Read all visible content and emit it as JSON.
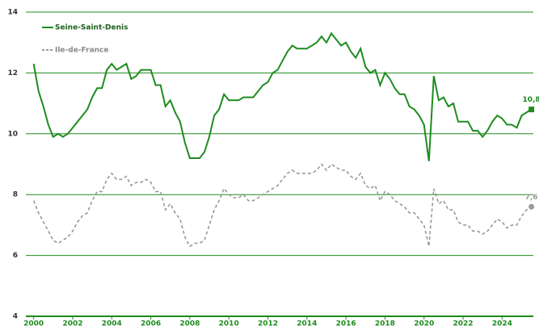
{
  "chart_data": {
    "type": "line",
    "x": [
      2000,
      2000.25,
      2000.5,
      2000.75,
      2001,
      2001.25,
      2001.5,
      2001.75,
      2002,
      2002.25,
      2002.5,
      2002.75,
      2003,
      2003.25,
      2003.5,
      2003.75,
      2004,
      2004.25,
      2004.5,
      2004.75,
      2005,
      2005.25,
      2005.5,
      2005.75,
      2006,
      2006.25,
      2006.5,
      2006.75,
      2007,
      2007.25,
      2007.5,
      2007.75,
      2008,
      2008.25,
      2008.5,
      2008.75,
      2009,
      2009.25,
      2009.5,
      2009.75,
      2010,
      2010.25,
      2010.5,
      2010.75,
      2011,
      2011.25,
      2011.5,
      2011.75,
      2012,
      2012.25,
      2012.5,
      2012.75,
      2013,
      2013.25,
      2013.5,
      2013.75,
      2014,
      2014.25,
      2014.5,
      2014.75,
      2015,
      2015.25,
      2015.5,
      2015.75,
      2016,
      2016.25,
      2016.5,
      2016.75,
      2017,
      2017.25,
      2017.5,
      2017.75,
      2018,
      2018.25,
      2018.5,
      2018.75,
      2019,
      2019.25,
      2019.5,
      2019.75,
      2020,
      2020.25,
      2020.5,
      2020.75,
      2021,
      2021.25,
      2021.5,
      2021.75,
      2022,
      2022.25,
      2022.5,
      2022.75,
      2023,
      2023.25,
      2023.5,
      2023.75,
      2024,
      2024.25,
      2024.5,
      2024.75,
      2025,
      2025.25,
      2025.5
    ],
    "series": [
      {
        "name": "Seine-Saint-Denis",
        "color": "#1e8c1e",
        "dashed": false,
        "marker": "square",
        "last_label": "10,8",
        "values": [
          12.3,
          11.4,
          10.9,
          10.3,
          9.9,
          10.0,
          9.9,
          10.0,
          10.2,
          10.4,
          10.6,
          10.8,
          11.2,
          11.5,
          11.5,
          12.1,
          12.3,
          12.1,
          12.2,
          12.3,
          11.8,
          11.9,
          12.1,
          12.1,
          12.1,
          11.6,
          11.6,
          10.9,
          11.1,
          10.7,
          10.4,
          9.7,
          9.2,
          9.2,
          9.2,
          9.4,
          9.9,
          10.6,
          10.8,
          11.3,
          11.1,
          11.1,
          11.1,
          11.2,
          11.2,
          11.2,
          11.4,
          11.6,
          11.7,
          12.0,
          12.1,
          12.4,
          12.7,
          12.9,
          12.8,
          12.8,
          12.8,
          12.9,
          13.0,
          13.2,
          13.0,
          13.3,
          13.1,
          12.9,
          13.0,
          12.7,
          12.5,
          12.8,
          12.2,
          12.0,
          12.1,
          11.6,
          12.0,
          11.8,
          11.5,
          11.3,
          11.3,
          10.9,
          10.8,
          10.6,
          10.3,
          9.1,
          11.9,
          11.1,
          11.2,
          10.9,
          11.0,
          10.4,
          10.4,
          10.4,
          10.1,
          10.1,
          9.9,
          10.1,
          10.4,
          10.6,
          10.5,
          10.3,
          10.3,
          10.2,
          10.6,
          10.7,
          10.8
        ]
      },
      {
        "name": "Ile-de-France",
        "color": "#999999",
        "dashed": true,
        "marker": "circle",
        "last_label": "7,6",
        "values": [
          7.8,
          7.4,
          7.1,
          6.8,
          6.5,
          6.4,
          6.5,
          6.6,
          6.8,
          7.1,
          7.3,
          7.4,
          7.8,
          8.1,
          8.1,
          8.5,
          8.7,
          8.5,
          8.5,
          8.6,
          8.3,
          8.4,
          8.4,
          8.5,
          8.4,
          8.1,
          8.1,
          7.5,
          7.7,
          7.4,
          7.2,
          6.6,
          6.3,
          6.4,
          6.4,
          6.5,
          7.0,
          7.5,
          7.8,
          8.2,
          8.0,
          7.9,
          7.9,
          8.0,
          7.8,
          7.8,
          7.9,
          8.0,
          8.1,
          8.2,
          8.3,
          8.5,
          8.7,
          8.8,
          8.7,
          8.7,
          8.7,
          8.7,
          8.8,
          9.0,
          8.8,
          9.0,
          8.9,
          8.8,
          8.8,
          8.6,
          8.5,
          8.7,
          8.3,
          8.2,
          8.3,
          7.8,
          8.1,
          8.0,
          7.8,
          7.7,
          7.6,
          7.4,
          7.4,
          7.2,
          7.0,
          6.3,
          8.2,
          7.7,
          7.8,
          7.5,
          7.5,
          7.1,
          7.0,
          7.0,
          6.8,
          6.8,
          6.7,
          6.8,
          7.0,
          7.2,
          7.1,
          6.9,
          7.0,
          7.0,
          7.3,
          7.5,
          7.6
        ]
      }
    ],
    "xlim": [
      1999.6,
      2025.6
    ],
    "xticks": [
      2000,
      2002,
      2004,
      2006,
      2008,
      2010,
      2012,
      2014,
      2016,
      2018,
      2020,
      2022,
      2024
    ],
    "ylim": [
      4,
      14
    ],
    "yticks": [
      4,
      6,
      8,
      10,
      12,
      14
    ],
    "grid": true,
    "grid_color": "#1e8c1e"
  }
}
